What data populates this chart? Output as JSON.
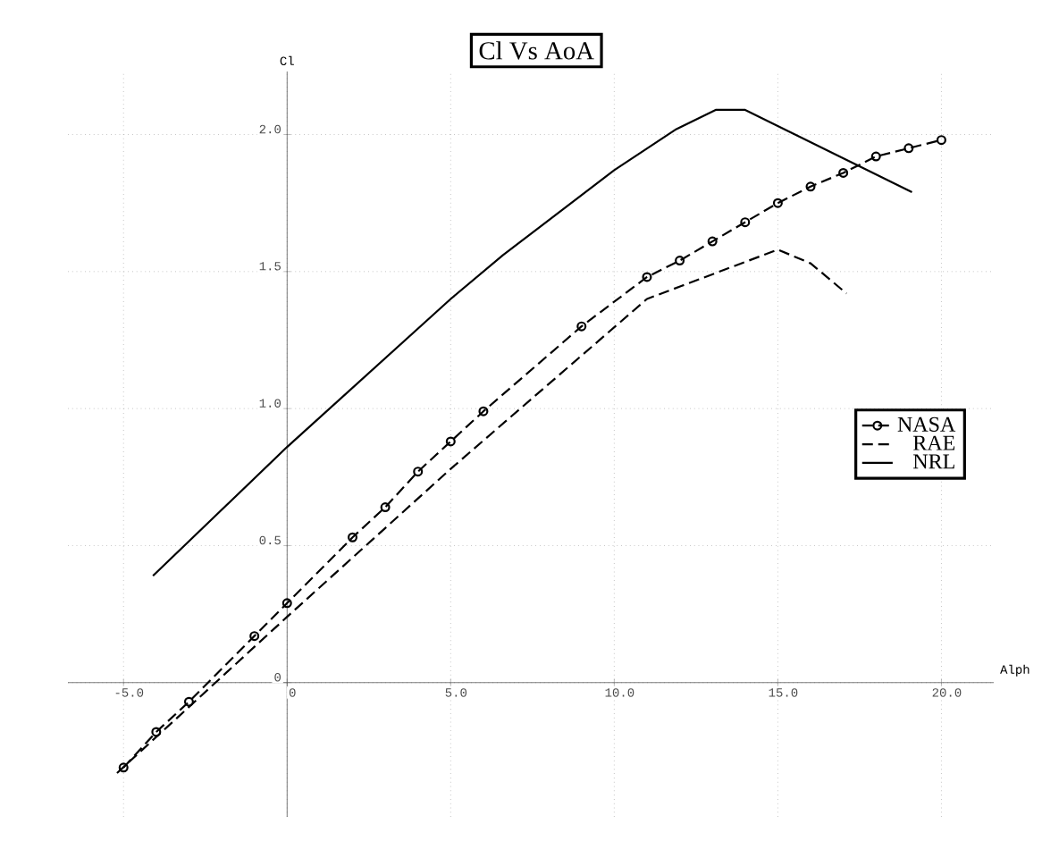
{
  "chart_data": {
    "type": "line",
    "title": "Cl Vs AoA",
    "xlabel": "Alph",
    "ylabel": "Cl",
    "xlim": [
      -6.7,
      21.6
    ],
    "ylim": [
      -0.49,
      2.23
    ],
    "xticks": [
      {
        "value": -5,
        "label": "-5.0"
      },
      0,
      {
        "value": 5,
        "label": "5.0"
      },
      {
        "value": 10,
        "label": "10.0"
      },
      {
        "value": 15,
        "label": "15.0"
      },
      {
        "value": 20,
        "label": "20.0"
      }
    ],
    "yticks": [
      0,
      0.5,
      {
        "value": 1,
        "label": "1.0"
      },
      1.5,
      {
        "value": 2,
        "label": "2.0"
      }
    ],
    "grid": true,
    "legend": "right",
    "series": [
      {
        "name": "NASA",
        "color": "#000000",
        "marker": "circle",
        "line_style": "dashed",
        "x": [
          -5,
          -4,
          -3,
          -1,
          0,
          2,
          3,
          4,
          5,
          6,
          9,
          11,
          12,
          13,
          14,
          15,
          16,
          17,
          18,
          19,
          20
        ],
        "values": [
          -0.31,
          -0.18,
          -0.07,
          0.17,
          0.29,
          0.53,
          0.64,
          0.77,
          0.88,
          0.99,
          1.3,
          1.48,
          1.54,
          1.61,
          1.68,
          1.75,
          1.81,
          1.86,
          1.92,
          1.95,
          1.98
        ]
      },
      {
        "name": "RAE",
        "color": "#000000",
        "marker": "none",
        "line_style": "dashed",
        "x": [
          -5.2,
          0,
          5,
          11,
          15,
          16,
          17.1
        ],
        "values": [
          -0.33,
          0.24,
          0.78,
          1.4,
          1.58,
          1.53,
          1.42
        ]
      },
      {
        "name": "NRL",
        "color": "#000000",
        "marker": "none",
        "line_style": "solid",
        "x": [
          -4.1,
          0,
          5,
          6.6,
          10,
          11.9,
          13.1,
          14,
          19.1
        ],
        "values": [
          0.39,
          0.86,
          1.4,
          1.56,
          1.87,
          2.02,
          2.09,
          2.09,
          1.79
        ]
      }
    ]
  }
}
